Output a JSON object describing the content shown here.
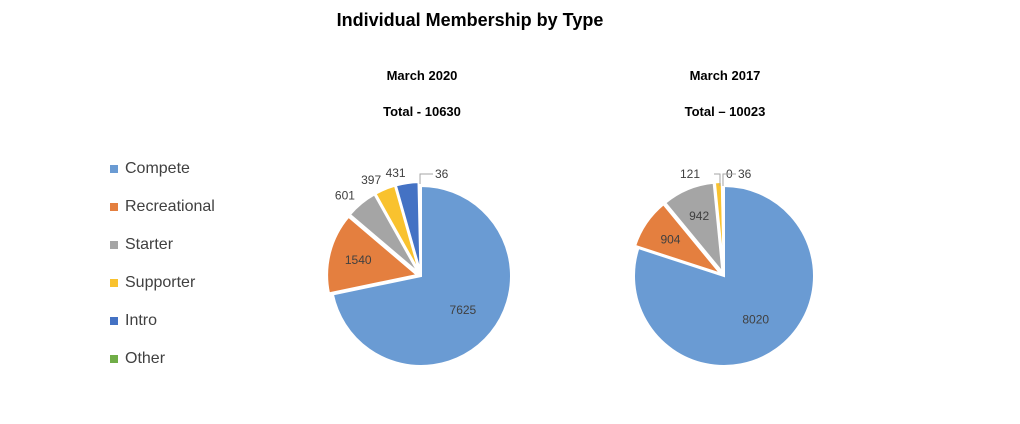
{
  "title": "Individual Membership by Type",
  "colors": {
    "Compete": "#6a9bd3",
    "Recreational": "#e47f3f",
    "Starter": "#a5a5a5",
    "Supporter": "#f9c22e",
    "Intro": "#4472c4",
    "Other": "#70ad47"
  },
  "legend": [
    "Compete",
    "Recreational",
    "Starter",
    "Supporter",
    "Intro",
    "Other"
  ],
  "chart_data": [
    {
      "type": "pie",
      "title": "March 2020",
      "subtitle": "Total - 10630",
      "labels": [
        "Compete",
        "Recreational",
        "Starter",
        "Supporter",
        "Intro",
        "Other"
      ],
      "values": [
        7625,
        1540,
        601,
        397,
        431,
        36
      ],
      "display_labels": [
        "7625",
        "1540",
        "601",
        "397",
        "431",
        "36"
      ],
      "legend": "left"
    },
    {
      "type": "pie",
      "title": "March 2017",
      "subtitle": "Total – 10023",
      "labels": [
        "Compete",
        "Recreational",
        "Starter",
        "Supporter",
        "Intro",
        "Other"
      ],
      "values": [
        8020,
        904,
        942,
        121,
        0,
        36
      ],
      "display_labels": [
        "8020",
        "904",
        "942",
        "121",
        "0",
        "36"
      ],
      "legend": "left"
    }
  ]
}
